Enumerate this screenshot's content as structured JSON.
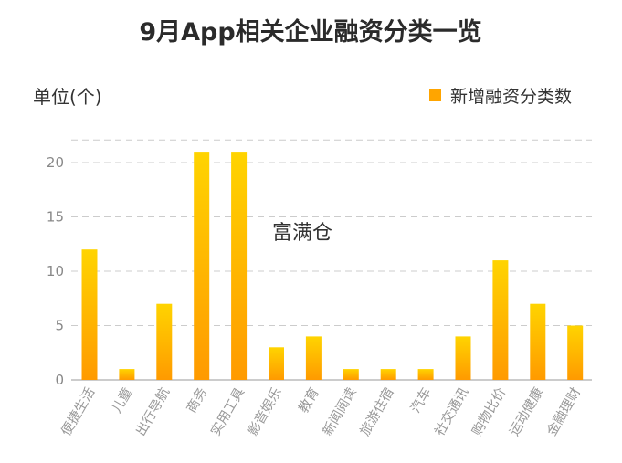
{
  "chart_data": {
    "type": "bar",
    "title": "9月App相关企业融资分类一览",
    "ylabel": "单位(个)",
    "xlabel": "",
    "legend": {
      "label": "新增融资分类数",
      "position": "top-right"
    },
    "watermark": "富满仓",
    "categories": [
      "便捷生活",
      "儿童",
      "出行导航",
      "商务",
      "实用工具",
      "影音娱乐",
      "教育",
      "新闻阅读",
      "旅游住宿",
      "汽车",
      "社交通讯",
      "购物比价",
      "运动健康",
      "金融理财"
    ],
    "series": [
      {
        "name": "新增融资分类数",
        "values": [
          12,
          1,
          7,
          21,
          21,
          3,
          4,
          1,
          1,
          1,
          4,
          11,
          7,
          5
        ]
      }
    ],
    "ylim": [
      0,
      22
    ],
    "yticks": [
      0,
      5,
      10,
      15,
      20
    ],
    "grid": true,
    "colors": {
      "bar_top": "#FFD400",
      "bar_bottom": "#FF9A00",
      "legend_swatch": "#FFA500"
    }
  }
}
